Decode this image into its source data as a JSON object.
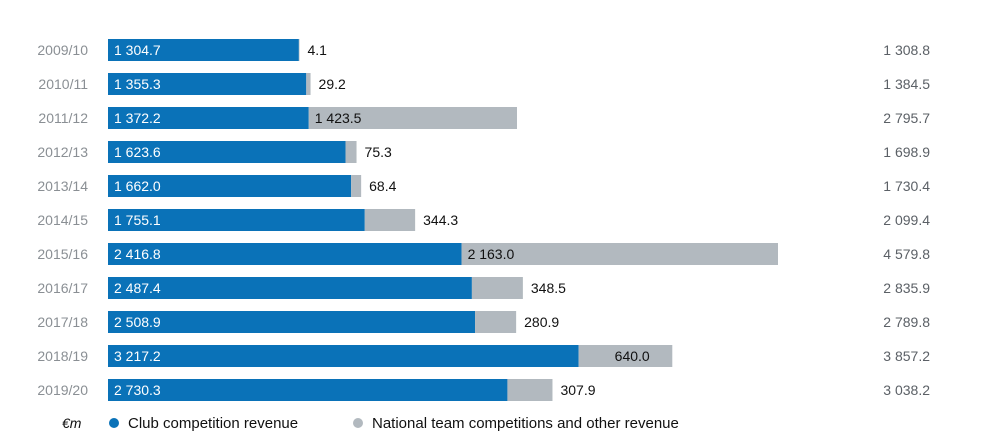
{
  "chart_data": {
    "type": "bar",
    "orientation": "horizontal",
    "stacked": true,
    "unit": "€m",
    "categories": [
      "2009/10",
      "2010/11",
      "2011/12",
      "2012/13",
      "2013/14",
      "2014/15",
      "2015/16",
      "2016/17",
      "2017/18",
      "2018/19",
      "2019/20"
    ],
    "series": [
      {
        "name": "Club competition revenue",
        "color": "#0a72b8",
        "values": [
          1304.7,
          1355.3,
          1372.2,
          1623.6,
          1662.0,
          1755.1,
          2416.8,
          2487.4,
          2508.9,
          3217.2,
          2730.3
        ],
        "labels": [
          "1 304.7",
          "1 355.3",
          "1 372.2",
          "1 623.6",
          "1 662.0",
          "1 755.1",
          "2 416.8",
          "2 487.4",
          "2 508.9",
          "3 217.2",
          "2 730.3"
        ]
      },
      {
        "name": "National team competitions and other revenue",
        "color": "#b2b9bf",
        "values": [
          4.1,
          29.2,
          1423.5,
          75.3,
          68.4,
          344.3,
          2163.0,
          348.5,
          280.9,
          640.0,
          307.9
        ],
        "labels": [
          "4.1",
          "29.2",
          "1 423.5",
          "75.3",
          "68.4",
          "344.3",
          "2 163.0",
          "348.5",
          "280.9",
          "640.0",
          "307.9"
        ]
      }
    ],
    "totals": [
      "1 308.8",
      "1 384.5",
      "2 795.7",
      "1 698.9",
      "1 730.4",
      "2 099.4",
      "4 579.8",
      "2 835.9",
      "2 789.8",
      "3 857.2",
      "3 038.2"
    ],
    "grid": false,
    "legend_position": "bottom-left"
  }
}
